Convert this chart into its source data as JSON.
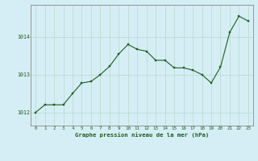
{
  "hours": [
    0,
    1,
    2,
    3,
    4,
    5,
    6,
    7,
    8,
    9,
    10,
    11,
    12,
    13,
    14,
    15,
    16,
    17,
    18,
    19,
    20,
    21,
    22,
    23
  ],
  "pressure": [
    1012.0,
    1012.2,
    1012.2,
    1012.2,
    1012.5,
    1012.78,
    1012.82,
    1013.0,
    1013.22,
    1013.55,
    1013.8,
    1013.67,
    1013.62,
    1013.38,
    1013.38,
    1013.18,
    1013.18,
    1013.12,
    1013.0,
    1012.78,
    1013.2,
    1014.12,
    1014.55,
    1014.42
  ],
  "line_color": "#1f5c1f",
  "marker_color": "#1f5c1f",
  "bg_color": "#d5eef5",
  "plot_bg_color": "#d5eef5",
  "grid_color": "#b8d8cc",
  "axis_label_color": "#1f5c1f",
  "tick_label_color": "#1f5c1f",
  "ylabel_ticks": [
    1012,
    1013,
    1014
  ],
  "xlabel": "Graphe pression niveau de la mer (hPa)",
  "ylim": [
    1011.65,
    1014.85
  ],
  "xlim": [
    -0.5,
    23.5
  ]
}
